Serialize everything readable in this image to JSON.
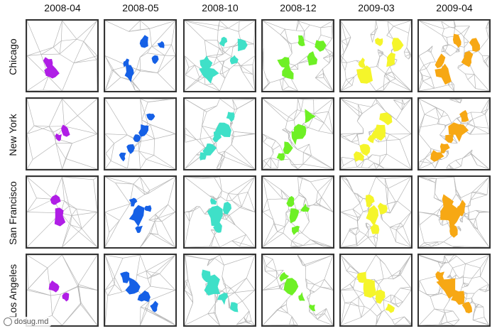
{
  "columns": [
    "2008-04",
    "2008-05",
    "2008-10",
    "2008-12",
    "2009-03",
    "2009-04"
  ],
  "rows": [
    "Chicago",
    "New York",
    "San Francisco",
    "Los Angeles"
  ],
  "column_colors": [
    "#b01ee6",
    "#1560e6",
    "#3fe0c8",
    "#6ef025",
    "#f5f52a",
    "#f7a814"
  ],
  "watermark": "dosug.md",
  "mesh_color": "#b5b5b5",
  "panel_border_color": "#333333"
}
